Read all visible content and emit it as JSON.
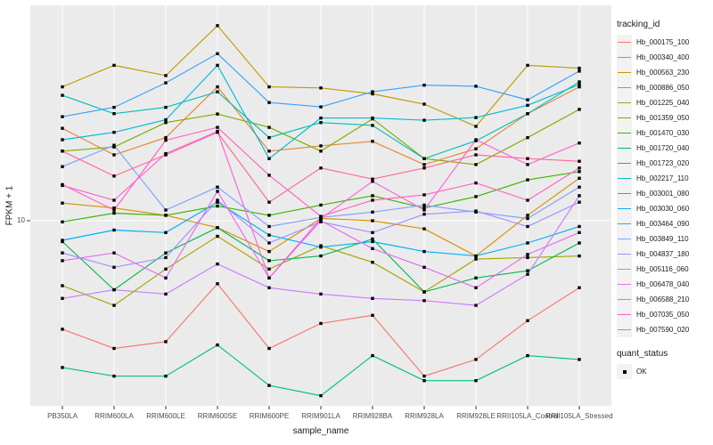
{
  "chart": {
    "type": "line",
    "xlabel": "sample_name",
    "ylabel": "FPKM + 1",
    "y_scale": "log10",
    "y_axis": {
      "tick_values": [
        10
      ],
      "tick_labels": [
        "10"
      ]
    },
    "panel_bg": "#EBEBEB",
    "grid_color": "#FFFFFF",
    "tick_color": "#333333",
    "point_color": "#000000",
    "legend_key_bg": "#F2F2F2",
    "categories": [
      "PB350LA",
      "RRIM600LA",
      "RRIM600LE",
      "RRIM600SE",
      "RRIM600PE",
      "RRIM901LA",
      "RRIM928BA",
      "RRIM928LA",
      "RRIM928LE",
      "RRII105LA_Control",
      "RRII105LA_Stressed"
    ],
    "legend": {
      "color_title": "tracking_id",
      "shape_title": "quant_status",
      "shape_items": [
        {
          "label": "OK",
          "marker": "black-square"
        }
      ]
    },
    "series": [
      {
        "id": "Hb_000175_100",
        "color": "#F8766D",
        "values": [
          3.8,
          3.2,
          3.4,
          5.7,
          3.2,
          4.0,
          4.3,
          2.5,
          2.9,
          4.1,
          5.5
        ]
      },
      {
        "id": "Hb_000340_400",
        "color": "#EA8331",
        "values": [
          22.8,
          18.0,
          21.0,
          33.0,
          18.6,
          19.5,
          20.3,
          16.5,
          19.0,
          26.0,
          33.0
        ]
      },
      {
        "id": "Hb_000563_230",
        "color": "#D89000",
        "values": [
          11.7,
          11.2,
          10.5,
          9.4,
          7.6,
          10.2,
          10.0,
          9.3,
          7.3,
          10.5,
          14.6
        ]
      },
      {
        "id": "Hb_000886_050",
        "color": "#C09B00",
        "values": [
          33.0,
          40.0,
          36.5,
          57.0,
          33.0,
          32.7,
          31.0,
          28.3,
          23.2,
          40.0,
          39.0
        ]
      },
      {
        "id": "Hb_001225_040",
        "color": "#A3A500",
        "values": [
          5.6,
          4.7,
          6.5,
          8.7,
          6.5,
          8.0,
          6.9,
          5.3,
          7.1,
          7.2,
          7.3
        ]
      },
      {
        "id": "Hb_001359_050",
        "color": "#7CAE00",
        "values": [
          18.6,
          19.3,
          24.0,
          25.9,
          23.0,
          18.6,
          24.8,
          17.4,
          16.5,
          21.0,
          27.0
        ]
      },
      {
        "id": "Hb_001470_030",
        "color": "#39B600",
        "values": [
          9.9,
          10.7,
          10.5,
          11.4,
          10.5,
          11.5,
          12.5,
          11.2,
          12.4,
          14.4,
          15.5
        ]
      },
      {
        "id": "Hb_001720_040",
        "color": "#00BB4E",
        "values": [
          8.3,
          5.4,
          7.5,
          9.4,
          7.0,
          7.3,
          8.5,
          5.3,
          6.0,
          6.4,
          8.2
        ]
      },
      {
        "id": "Hb_001723_020",
        "color": "#00C087",
        "values": [
          2.7,
          2.5,
          2.5,
          3.3,
          2.3,
          2.1,
          3.0,
          2.4,
          2.4,
          3.0,
          2.9
        ]
      },
      {
        "id": "Hb_002217_110",
        "color": "#00C0B4",
        "values": [
          30.6,
          26.0,
          27.5,
          31.6,
          21.0,
          24.0,
          23.4,
          17.4,
          20.4,
          26.0,
          34.5
        ]
      },
      {
        "id": "Hb_003001_080",
        "color": "#00BCD8",
        "values": [
          20.6,
          22.0,
          24.6,
          40.0,
          17.4,
          25.0,
          25.0,
          24.5,
          25.1,
          28.0,
          33.7
        ]
      },
      {
        "id": "Hb_003030_060",
        "color": "#00B0F6",
        "values": [
          8.4,
          9.2,
          9.0,
          11.8,
          8.8,
          7.9,
          8.3,
          7.6,
          7.3,
          8.2,
          9.5
        ]
      },
      {
        "id": "Hb_003464_090",
        "color": "#35A2FF",
        "values": [
          25.3,
          27.5,
          34.2,
          44.4,
          28.7,
          27.6,
          31.6,
          33.5,
          33.2,
          29.4,
          38.0
        ]
      },
      {
        "id": "Hb_003849_110",
        "color": "#82A1FF",
        "values": [
          16.2,
          19.6,
          11.0,
          13.5,
          9.5,
          10.3,
          10.8,
          11.5,
          10.8,
          10.2,
          13.5
        ]
      },
      {
        "id": "Hb_004837_180",
        "color": "#A68BFF",
        "values": [
          7.5,
          6.6,
          7.2,
          12.0,
          8.2,
          9.9,
          9.0,
          10.6,
          10.9,
          9.5,
          11.8
        ]
      },
      {
        "id": "Hb_005116_060",
        "color": "#CD79FF",
        "values": [
          5.0,
          5.4,
          5.2,
          6.8,
          5.5,
          5.2,
          5.0,
          4.9,
          4.7,
          6.2,
          12.5
        ]
      },
      {
        "id": "Hb_006478_040",
        "color": "#E76BF3",
        "values": [
          7.0,
          7.5,
          6.0,
          13.0,
          6.0,
          10.0,
          7.8,
          6.6,
          5.5,
          7.4,
          9.0
        ]
      },
      {
        "id": "Hb_006588_210",
        "color": "#FA62DB",
        "values": [
          13.7,
          12.0,
          18.2,
          22.2,
          6.0,
          10.2,
          14.2,
          11.0,
          20.6,
          16.5,
          20.0
        ]
      },
      {
        "id": "Hb_007035_050",
        "color": "#FF61C0",
        "values": [
          13.8,
          11.0,
          20.5,
          23.0,
          15.0,
          10.4,
          12.0,
          12.6,
          14.0,
          12.0,
          16.0
        ]
      },
      {
        "id": "Hb_007590_020",
        "color": "#FF689F",
        "values": [
          18.6,
          14.9,
          18.0,
          22.0,
          11.8,
          16.0,
          14.5,
          16.0,
          18.0,
          17.4,
          17.0
        ]
      }
    ]
  }
}
